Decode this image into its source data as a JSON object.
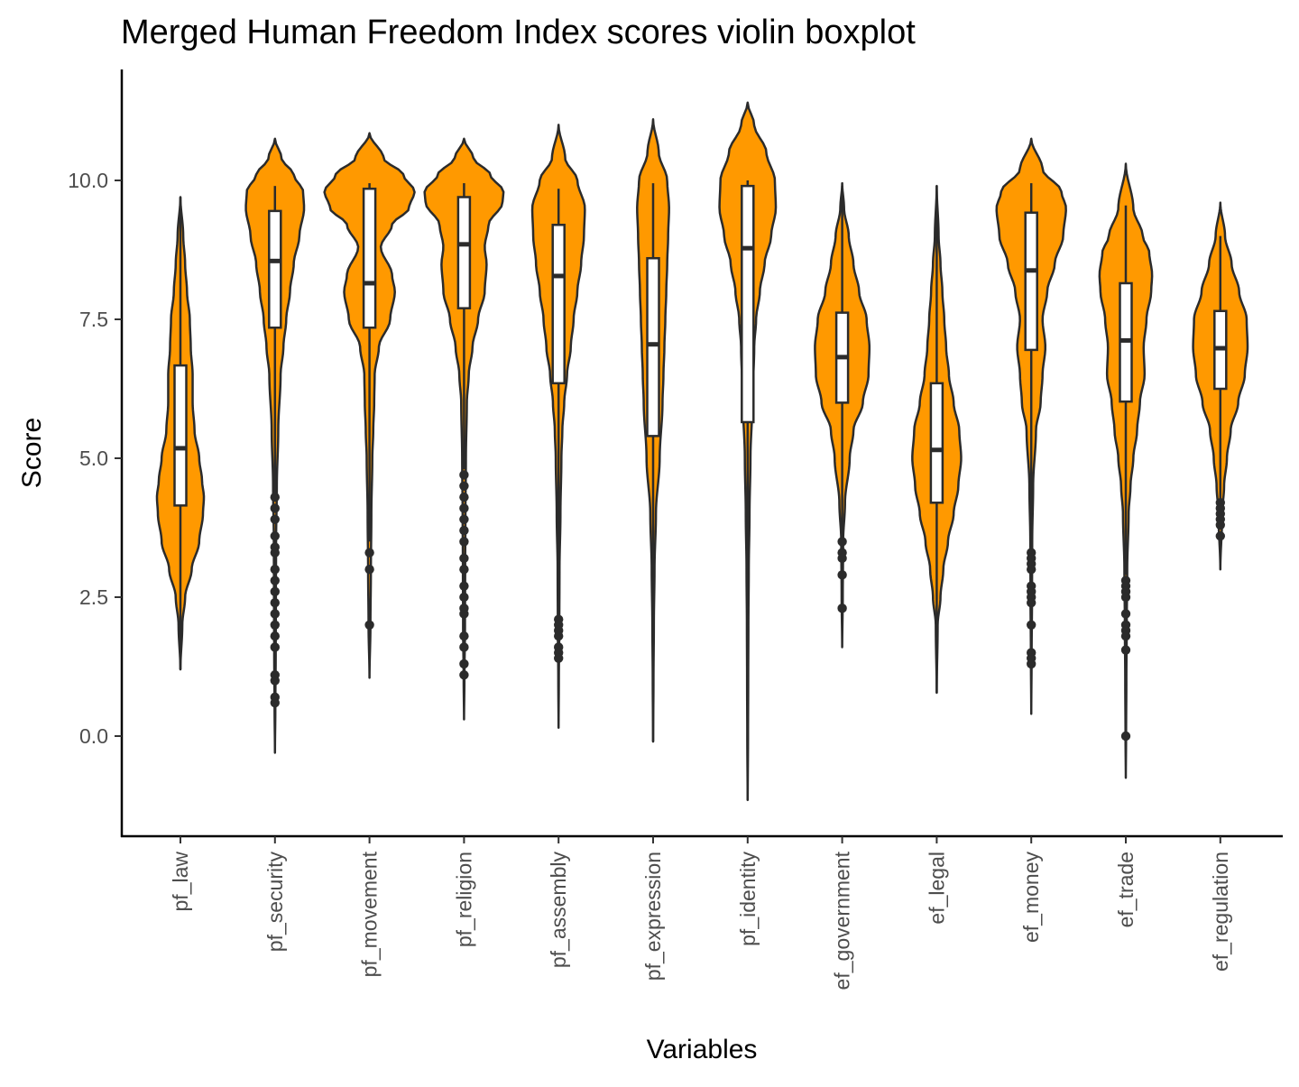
{
  "chart_data": {
    "type": "violin",
    "title": "Merged Human Freedom Index scores violin boxplot",
    "xlabel": "Variables",
    "ylabel": "Score",
    "ylim": [
      -1.8,
      12
    ],
    "yticks": [
      "0.0",
      "2.5",
      "5.0",
      "7.5",
      "10.0"
    ],
    "grid": false,
    "legend": "none",
    "colors": {
      "violin_fill": "#ff9900",
      "outline": "#2b2b2b",
      "box_fill": "#ffffff",
      "axis": "#000000"
    },
    "categories": [
      "pf_law",
      "pf_security",
      "pf_movement",
      "pf_religion",
      "pf_assembly",
      "pf_expression",
      "pf_identity",
      "ef_government",
      "ef_legal",
      "ef_money",
      "ef_trade",
      "ef_regulation"
    ],
    "series": [
      {
        "category": "pf_law",
        "violin_min": 1.2,
        "violin_max": 9.7,
        "density": [
          [
            1.2,
            0.0
          ],
          [
            2.0,
            0.02
          ],
          [
            2.5,
            0.05
          ],
          [
            3.0,
            0.12
          ],
          [
            3.5,
            0.2
          ],
          [
            4.0,
            0.24
          ],
          [
            4.3,
            0.25
          ],
          [
            4.6,
            0.23
          ],
          [
            5.0,
            0.2
          ],
          [
            5.5,
            0.15
          ],
          [
            6.0,
            0.13
          ],
          [
            6.5,
            0.13
          ],
          [
            7.0,
            0.11
          ],
          [
            7.5,
            0.1
          ],
          [
            8.0,
            0.07
          ],
          [
            8.5,
            0.05
          ],
          [
            9.0,
            0.03
          ],
          [
            9.7,
            0.0
          ]
        ],
        "box": {
          "q1": 4.15,
          "median": 5.18,
          "q3": 6.67,
          "whisker_low": 1.2,
          "whisker_high": 9.7
        },
        "outliers": []
      },
      {
        "category": "pf_security",
        "violin_min": -0.3,
        "violin_max": 10.75,
        "density": [
          [
            -0.3,
            0.0
          ],
          [
            0.5,
            0.004
          ],
          [
            1.5,
            0.008
          ],
          [
            2.5,
            0.01
          ],
          [
            3.5,
            0.012
          ],
          [
            4.5,
            0.02
          ],
          [
            5.5,
            0.035
          ],
          [
            6.5,
            0.06
          ],
          [
            7.0,
            0.09
          ],
          [
            7.5,
            0.12
          ],
          [
            8.0,
            0.16
          ],
          [
            8.5,
            0.2
          ],
          [
            9.0,
            0.26
          ],
          [
            9.5,
            0.31
          ],
          [
            9.8,
            0.3
          ],
          [
            10.1,
            0.2
          ],
          [
            10.4,
            0.07
          ],
          [
            10.75,
            0.0
          ]
        ],
        "box": {
          "q1": 7.35,
          "median": 8.55,
          "q3": 9.45,
          "whisker_low": 4.35,
          "whisker_high": 9.9
        },
        "outliers": [
          4.3,
          4.1,
          3.9,
          3.6,
          3.4,
          3.3,
          3.0,
          2.8,
          2.6,
          2.4,
          2.2,
          2.0,
          1.8,
          1.6,
          1.1,
          1.0,
          0.7,
          0.6
        ]
      },
      {
        "category": "pf_movement",
        "violin_min": 1.05,
        "violin_max": 10.85,
        "density": [
          [
            1.05,
            0.0
          ],
          [
            2.0,
            0.01
          ],
          [
            3.0,
            0.015
          ],
          [
            4.0,
            0.02
          ],
          [
            5.0,
            0.03
          ],
          [
            5.5,
            0.04
          ],
          [
            6.0,
            0.05
          ],
          [
            6.5,
            0.055
          ],
          [
            7.0,
            0.1
          ],
          [
            7.5,
            0.22
          ],
          [
            8.0,
            0.27
          ],
          [
            8.3,
            0.24
          ],
          [
            8.8,
            0.12
          ],
          [
            9.2,
            0.24
          ],
          [
            9.5,
            0.42
          ],
          [
            9.8,
            0.48
          ],
          [
            10.1,
            0.36
          ],
          [
            10.4,
            0.15
          ],
          [
            10.85,
            0.0
          ]
        ],
        "box": {
          "q1": 7.35,
          "median": 8.15,
          "q3": 9.85,
          "whisker_low": 3.5,
          "whisker_high": 9.95
        },
        "outliers": [
          3.3,
          3.0,
          2.0
        ]
      },
      {
        "category": "pf_religion",
        "violin_min": 0.3,
        "violin_max": 10.75,
        "density": [
          [
            0.3,
            0.0
          ],
          [
            1.0,
            0.004
          ],
          [
            2.0,
            0.01
          ],
          [
            3.0,
            0.012
          ],
          [
            4.0,
            0.015
          ],
          [
            5.0,
            0.02
          ],
          [
            6.0,
            0.03
          ],
          [
            6.5,
            0.05
          ],
          [
            7.0,
            0.09
          ],
          [
            7.5,
            0.15
          ],
          [
            8.0,
            0.22
          ],
          [
            8.5,
            0.24
          ],
          [
            8.8,
            0.22
          ],
          [
            9.2,
            0.26
          ],
          [
            9.6,
            0.41
          ],
          [
            9.8,
            0.42
          ],
          [
            10.1,
            0.28
          ],
          [
            10.4,
            0.1
          ],
          [
            10.75,
            0.0
          ]
        ],
        "box": {
          "q1": 7.7,
          "median": 8.85,
          "q3": 9.7,
          "whisker_low": 4.8,
          "whisker_high": 9.95
        },
        "outliers": [
          4.7,
          4.5,
          4.3,
          4.1,
          3.9,
          3.7,
          3.5,
          3.2,
          3.0,
          2.7,
          2.5,
          2.3,
          2.2,
          1.8,
          1.6,
          1.3,
          1.1
        ]
      },
      {
        "category": "pf_assembly",
        "violin_min": 0.15,
        "violin_max": 11.0,
        "density": [
          [
            0.15,
            0.0
          ],
          [
            1.0,
            0.003
          ],
          [
            2.0,
            0.008
          ],
          [
            3.0,
            0.01
          ],
          [
            4.0,
            0.02
          ],
          [
            5.0,
            0.03
          ],
          [
            5.5,
            0.04
          ],
          [
            6.0,
            0.06
          ],
          [
            6.5,
            0.09
          ],
          [
            7.0,
            0.13
          ],
          [
            7.5,
            0.16
          ],
          [
            8.0,
            0.2
          ],
          [
            8.5,
            0.24
          ],
          [
            9.0,
            0.27
          ],
          [
            9.5,
            0.28
          ],
          [
            10.0,
            0.2
          ],
          [
            10.4,
            0.07
          ],
          [
            11.0,
            0.0
          ]
        ],
        "box": {
          "q1": 6.35,
          "median": 8.28,
          "q3": 9.2,
          "whisker_low": 2.1,
          "whisker_high": 9.85
        },
        "outliers": [
          2.1,
          2.0,
          1.9,
          1.8,
          1.6,
          1.5,
          1.4
        ]
      },
      {
        "category": "pf_expression",
        "violin_min": -0.1,
        "violin_max": 11.1,
        "density": [
          [
            -0.1,
            0.0
          ],
          [
            1.0,
            0.004
          ],
          [
            2.0,
            0.008
          ],
          [
            3.0,
            0.015
          ],
          [
            4.0,
            0.03
          ],
          [
            5.0,
            0.07
          ],
          [
            6.0,
            0.1
          ],
          [
            6.5,
            0.11
          ],
          [
            7.0,
            0.12
          ],
          [
            7.5,
            0.13
          ],
          [
            8.0,
            0.14
          ],
          [
            8.5,
            0.15
          ],
          [
            9.0,
            0.16
          ],
          [
            9.5,
            0.17
          ],
          [
            10.0,
            0.15
          ],
          [
            10.5,
            0.06
          ],
          [
            11.1,
            0.0
          ]
        ],
        "box": {
          "q1": 5.4,
          "median": 7.05,
          "q3": 8.6,
          "whisker_low": -0.1,
          "whisker_high": 9.95
        },
        "outliers": []
      },
      {
        "category": "pf_identity",
        "violin_min": -1.15,
        "violin_max": 11.4,
        "density": [
          [
            -1.15,
            0.0
          ],
          [
            0.0,
            0.004
          ],
          [
            1.0,
            0.006
          ],
          [
            2.0,
            0.008
          ],
          [
            3.0,
            0.012
          ],
          [
            4.0,
            0.02
          ],
          [
            5.0,
            0.03
          ],
          [
            6.0,
            0.05
          ],
          [
            7.0,
            0.07
          ],
          [
            7.5,
            0.09
          ],
          [
            8.0,
            0.13
          ],
          [
            8.5,
            0.18
          ],
          [
            9.0,
            0.25
          ],
          [
            9.5,
            0.3
          ],
          [
            10.0,
            0.29
          ],
          [
            10.5,
            0.2
          ],
          [
            11.0,
            0.07
          ],
          [
            11.4,
            0.0
          ]
        ],
        "box": {
          "q1": 5.65,
          "median": 8.78,
          "q3": 9.9,
          "whisker_low": -1.15,
          "whisker_high": 10.0
        },
        "outliers": []
      },
      {
        "category": "ef_government",
        "violin_min": 1.6,
        "violin_max": 9.95,
        "density": [
          [
            1.6,
            0.0
          ],
          [
            2.5,
            0.006
          ],
          [
            3.5,
            0.01
          ],
          [
            4.2,
            0.03
          ],
          [
            5.0,
            0.08
          ],
          [
            5.5,
            0.12
          ],
          [
            6.0,
            0.22
          ],
          [
            6.5,
            0.28
          ],
          [
            7.0,
            0.29
          ],
          [
            7.5,
            0.26
          ],
          [
            8.0,
            0.18
          ],
          [
            8.5,
            0.12
          ],
          [
            9.0,
            0.07
          ],
          [
            9.5,
            0.02
          ],
          [
            9.95,
            0.0
          ]
        ],
        "box": {
          "q1": 6.0,
          "median": 6.82,
          "q3": 7.62,
          "whisker_low": 3.6,
          "whisker_high": 9.9
        },
        "outliers": [
          3.5,
          3.3,
          3.2,
          2.9,
          2.3
        ]
      },
      {
        "category": "ef_legal",
        "violin_min": 0.78,
        "violin_max": 9.9,
        "density": [
          [
            0.78,
            0.0
          ],
          [
            2.0,
            0.01
          ],
          [
            2.5,
            0.04
          ],
          [
            3.0,
            0.07
          ],
          [
            3.5,
            0.12
          ],
          [
            4.0,
            0.18
          ],
          [
            4.5,
            0.23
          ],
          [
            5.0,
            0.26
          ],
          [
            5.5,
            0.24
          ],
          [
            6.0,
            0.18
          ],
          [
            6.5,
            0.13
          ],
          [
            7.0,
            0.1
          ],
          [
            7.5,
            0.08
          ],
          [
            8.0,
            0.06
          ],
          [
            8.5,
            0.04
          ],
          [
            9.0,
            0.02
          ],
          [
            9.9,
            0.0
          ]
        ],
        "box": {
          "q1": 4.2,
          "median": 5.15,
          "q3": 6.35,
          "whisker_low": 0.78,
          "whisker_high": 9.9
        },
        "outliers": []
      },
      {
        "category": "ef_money",
        "violin_min": 0.4,
        "violin_max": 10.75,
        "density": [
          [
            0.4,
            0.0
          ],
          [
            1.5,
            0.004
          ],
          [
            2.5,
            0.008
          ],
          [
            3.5,
            0.01
          ],
          [
            4.5,
            0.02
          ],
          [
            5.5,
            0.05
          ],
          [
            6.0,
            0.1
          ],
          [
            6.5,
            0.12
          ],
          [
            7.0,
            0.15
          ],
          [
            7.5,
            0.12
          ],
          [
            8.0,
            0.17
          ],
          [
            8.5,
            0.25
          ],
          [
            9.0,
            0.34
          ],
          [
            9.5,
            0.37
          ],
          [
            9.8,
            0.32
          ],
          [
            10.2,
            0.12
          ],
          [
            10.75,
            0.0
          ]
        ],
        "box": {
          "q1": 6.95,
          "median": 8.38,
          "q3": 9.42,
          "whisker_low": 3.4,
          "whisker_high": 9.95
        },
        "outliers": [
          3.3,
          3.2,
          3.1,
          3.0,
          2.7,
          2.6,
          2.5,
          2.4,
          2.0,
          1.5,
          1.4,
          1.3
        ]
      },
      {
        "category": "ef_trade",
        "violin_min": -0.75,
        "violin_max": 10.3,
        "density": [
          [
            -0.75,
            0.0
          ],
          [
            0.0,
            0.003
          ],
          [
            1.0,
            0.006
          ],
          [
            2.0,
            0.01
          ],
          [
            3.0,
            0.015
          ],
          [
            4.0,
            0.03
          ],
          [
            4.5,
            0.05
          ],
          [
            5.0,
            0.08
          ],
          [
            5.5,
            0.12
          ],
          [
            6.0,
            0.15
          ],
          [
            6.5,
            0.2
          ],
          [
            7.0,
            0.19
          ],
          [
            7.5,
            0.22
          ],
          [
            8.0,
            0.27
          ],
          [
            8.3,
            0.28
          ],
          [
            8.7,
            0.25
          ],
          [
            9.0,
            0.18
          ],
          [
            9.5,
            0.08
          ],
          [
            10.3,
            0.0
          ]
        ],
        "box": {
          "q1": 6.02,
          "median": 7.12,
          "q3": 8.15,
          "whisker_low": 2.9,
          "whisker_high": 9.55
        },
        "outliers": [
          2.8,
          2.7,
          2.6,
          2.5,
          2.2,
          2.0,
          1.9,
          1.8,
          1.55,
          0.0
        ]
      },
      {
        "category": "ef_regulation",
        "violin_min": 3.0,
        "violin_max": 9.6,
        "density": [
          [
            3.0,
            0.0
          ],
          [
            4.0,
            0.02
          ],
          [
            4.5,
            0.04
          ],
          [
            5.0,
            0.07
          ],
          [
            5.5,
            0.11
          ],
          [
            6.0,
            0.19
          ],
          [
            6.5,
            0.26
          ],
          [
            7.0,
            0.29
          ],
          [
            7.5,
            0.28
          ],
          [
            8.0,
            0.2
          ],
          [
            8.5,
            0.12
          ],
          [
            9.0,
            0.05
          ],
          [
            9.6,
            0.0
          ]
        ],
        "box": {
          "q1": 6.25,
          "median": 6.98,
          "q3": 7.65,
          "whisker_low": 4.2,
          "whisker_high": 9.0
        },
        "outliers": [
          4.2,
          4.1,
          4.0,
          3.9,
          3.8,
          3.6
        ]
      }
    ]
  }
}
